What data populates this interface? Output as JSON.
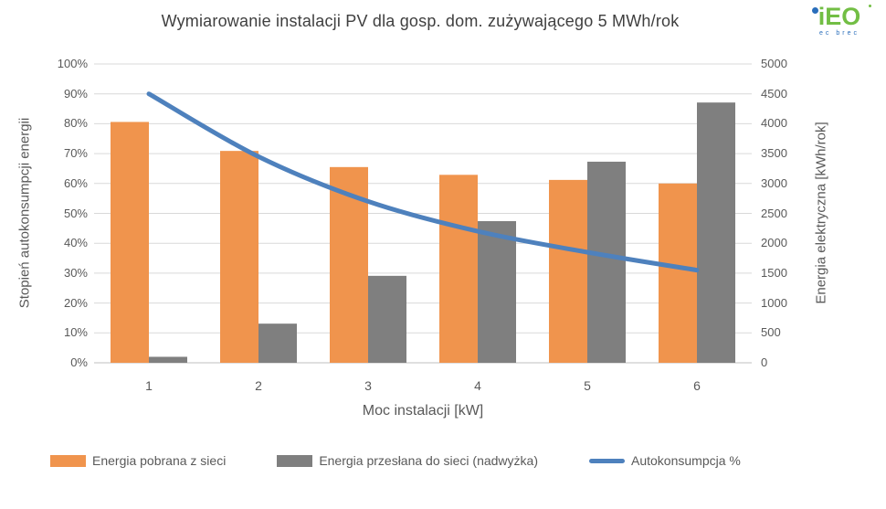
{
  "title": "Wymiarowanie instalacji PV dla gosp. dom. zużywającego 5 MWh/rok",
  "logo": {
    "text": "iEO",
    "subtext": "ec brec",
    "green": "#72be44",
    "blue": "#2a6ebb"
  },
  "colors": {
    "bar_orange": "#F0944D",
    "bar_gray": "#7F7F7F",
    "line_blue": "#4E81BD",
    "gridline": "#D9D9D9",
    "axis_line": "#BFBFBF",
    "text_gray": "#595959",
    "title_gray": "#3F3F3F"
  },
  "chart_data": {
    "type": "bar",
    "subtype": "combo-bar-line",
    "categories": [
      "1",
      "2",
      "3",
      "4",
      "5",
      "6"
    ],
    "series": [
      {
        "name": "Energia pobrana z sieci",
        "type": "bar",
        "axis": "right",
        "unit": "kWh/rok",
        "color": "#F0944D",
        "values": [
          4030,
          3545,
          3275,
          3145,
          3060,
          3000
        ]
      },
      {
        "name": "Energia przesłana do sieci (nadwyżka)",
        "type": "bar",
        "axis": "right",
        "unit": "kWh/rok",
        "color": "#7F7F7F",
        "values": [
          100,
          655,
          1455,
          2370,
          3365,
          4355
        ]
      },
      {
        "name": "Autokonsumpcja %",
        "type": "line",
        "axis": "left",
        "unit": "%",
        "color": "#4E81BD",
        "smooth": true,
        "values": [
          90,
          69,
          54,
          44,
          37,
          31
        ]
      }
    ],
    "xlabel": "Moc instalacji [kW]",
    "ylabel_left": "Stopień autokonsumpcji energii",
    "ylabel_right": "Energia elektryczna [kWh/rok]",
    "left_axis": {
      "min": 0,
      "max": 100,
      "step": 10,
      "tick_labels": [
        "0%",
        "10%",
        "20%",
        "30%",
        "40%",
        "50%",
        "60%",
        "70%",
        "80%",
        "90%",
        "100%"
      ]
    },
    "right_axis": {
      "min": 0,
      "max": 5000,
      "step": 500,
      "tick_labels": [
        "0",
        "500",
        "1000",
        "1500",
        "2000",
        "2500",
        "3000",
        "3500",
        "4000",
        "4500",
        "5000"
      ]
    },
    "grid": true,
    "legend_position": "bottom"
  }
}
